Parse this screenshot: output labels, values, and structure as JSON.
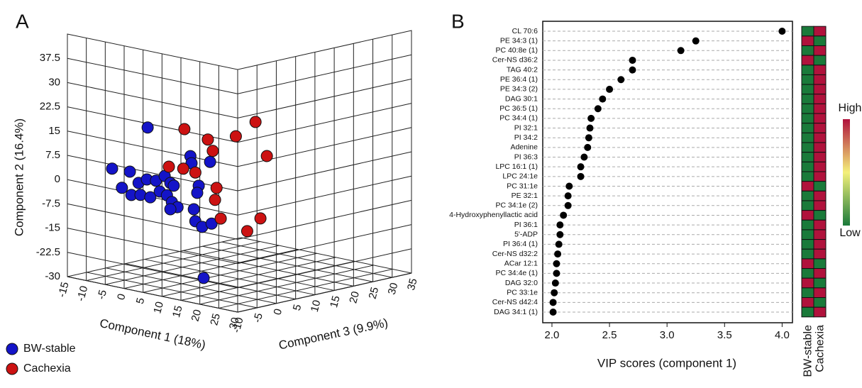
{
  "chart_data": [
    {
      "type": "scatter3d",
      "panel": "A",
      "xlabel": "Component 1 (18%)",
      "ylabel": "Component 2 (16.4%)",
      "zlabel": "Component 3 (9.9%)",
      "xlim": [
        -15,
        30
      ],
      "xticks": [
        -15,
        -10,
        -5,
        0,
        5,
        10,
        15,
        20,
        25,
        30
      ],
      "ylim": [
        -30,
        45
      ],
      "yticks": [
        -30,
        -22.5,
        -15,
        -7.5,
        0,
        7.5,
        15,
        22.5,
        30,
        37.5
      ],
      "zlim": [
        -10,
        35
      ],
      "zticks": [
        -10,
        -5,
        0,
        5,
        10,
        15,
        20,
        25,
        30,
        35
      ],
      "grid": true,
      "series": [
        {
          "name": "BW-stable",
          "color": "#1414c8",
          "x": [
            -4.0,
            -13.4,
            -8.7,
            -10.8,
            -6.4,
            -4.2,
            -1.8,
            0.5,
            2.0,
            -8.3,
            -5.9,
            -3.3,
            -0.8,
            1.1,
            2.9,
            2.4,
            3.9,
            2.0,
            7.3,
            7.6,
            9.5,
            9.1,
            8.2,
            8.6,
            10.4,
            12.9,
            12.5,
            10.8
          ],
          "y": [
            16.1,
            1.1,
            1.3,
            -4.2,
            -1.6,
            0.0,
            0.2,
            2.2,
            0.4,
            -5.8,
            -5.2,
            -5.3,
            -2.9,
            -3.6,
            -0.2,
            -5.4,
            -6.6,
            -7.7,
            10.0,
            7.9,
            1.4,
            -0.9,
            -6.2,
            -9.8,
            -11.1,
            -9.5,
            9.5,
            -26.8
          ],
          "z": [
            0,
            0,
            0,
            0,
            0,
            0,
            0,
            0,
            0,
            0,
            0,
            0,
            0,
            0,
            0,
            0,
            0,
            0,
            0,
            0,
            0,
            0,
            0,
            0,
            0,
            0,
            0,
            0
          ]
        },
        {
          "name": "Cachexia",
          "color": "#cc1212",
          "x": [
            -4.5,
            1.7,
            3.0,
            9.1,
            14.3,
            17.3,
            -8.6,
            -4.8,
            -1.6,
            4.0,
            3.6,
            5.1,
            15.6,
            12.1
          ],
          "y": [
            12.8,
            11.1,
            7.9,
            13.9,
            19.6,
            9.8,
            0.2,
            0.5,
            0.1,
            -3.3,
            -7.1,
            -12.5,
            -9.9,
            -14.7
          ],
          "z": [
            10,
            10,
            10,
            10,
            10,
            10,
            10,
            10,
            10,
            10,
            10,
            10,
            10,
            10
          ]
        }
      ]
    },
    {
      "type": "dot",
      "panel": "B",
      "xlabel": "VIP scores (component 1)",
      "categories": [
        "CL 70:6",
        "PE 34:3 (1)",
        "PC 40:8e (1)",
        "Cer-NS d36:2",
        "TAG 40:2",
        "PE 36:4 (1)",
        "PE 34:3 (2)",
        "DAG 30:1",
        "PC 36:5 (1)",
        "PC 34:4 (1)",
        "PI 32:1",
        "PI 34:2",
        "Adenine",
        "PI 36:3",
        "LPC 16:1 (1)",
        "LPC 24:1e",
        "PC 31:1e",
        "PE 32:1",
        "PC 34:1e (2)",
        "4-Hydroxyphenyllactic acid",
        "PI 36:1",
        "5'-ADP",
        "PI 36:4 (1)",
        "Cer-NS d32:2",
        "ACar 12:1",
        "PC 34:4e (1)",
        "DAG 32:0",
        "PC 33:1e",
        "Cer-NS d42:4",
        "DAG 34:1 (1)"
      ],
      "values": [
        4.0,
        3.25,
        3.12,
        2.7,
        2.7,
        2.6,
        2.5,
        2.44,
        2.4,
        2.34,
        2.33,
        2.32,
        2.31,
        2.28,
        2.25,
        2.25,
        2.15,
        2.14,
        2.14,
        2.1,
        2.07,
        2.07,
        2.06,
        2.05,
        2.04,
        2.04,
        2.03,
        2.02,
        2.01,
        2.01
      ],
      "color": "#000000",
      "xlim": [
        1.92,
        4.09
      ],
      "xticks": [
        {
          "value": 2,
          "label": "2.0"
        },
        {
          "value": 2.5,
          "label": "2.5"
        },
        {
          "value": 3,
          "label": "3.0"
        },
        {
          "value": 3.5,
          "label": "3.5"
        },
        {
          "value": 4,
          "label": "4.0"
        }
      ],
      "grid": true,
      "heatmap_columns": [
        "BW-stable",
        "Cachexia"
      ],
      "heatmap_values": [
        [
          0,
          1
        ],
        [
          1,
          0
        ],
        [
          0,
          1
        ],
        [
          1,
          0
        ],
        [
          0,
          1
        ],
        [
          0,
          1
        ],
        [
          0,
          1
        ],
        [
          0,
          1
        ],
        [
          0,
          1
        ],
        [
          0,
          1
        ],
        [
          0,
          1
        ],
        [
          0,
          1
        ],
        [
          0,
          1
        ],
        [
          0,
          1
        ],
        [
          0,
          1
        ],
        [
          0,
          1
        ],
        [
          1,
          0
        ],
        [
          0,
          1
        ],
        [
          0,
          1
        ],
        [
          1,
          0
        ],
        [
          0,
          1
        ],
        [
          0,
          1
        ],
        [
          0,
          1
        ],
        [
          0,
          1
        ],
        [
          1,
          0
        ],
        [
          0,
          1
        ],
        [
          1,
          0
        ],
        [
          0,
          1
        ],
        [
          1,
          0
        ],
        [
          0,
          1
        ]
      ],
      "heatmap_colors": [
        "#1a7a3a",
        "#f4f07a",
        "#b0123c"
      ],
      "heatmap_scale_labels": [
        "High",
        "Low"
      ]
    }
  ]
}
